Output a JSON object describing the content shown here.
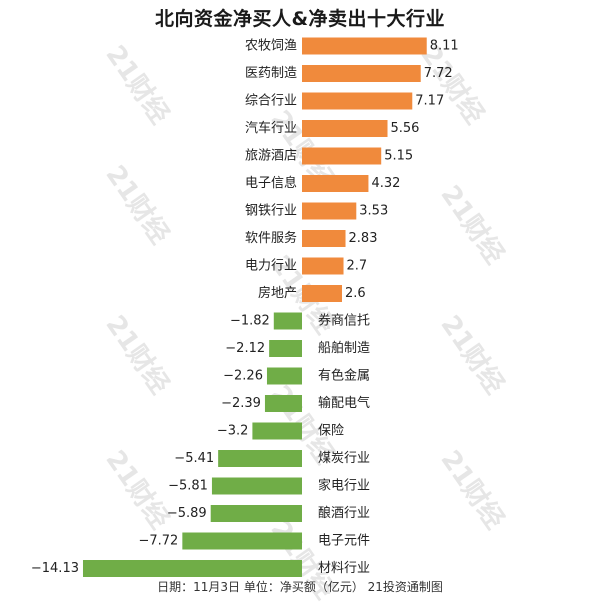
{
  "title": "北向资金净买人&净卖出十大行业",
  "footer": "日期：11月3日 单位：净买额（亿元） 21投资通制图",
  "watermark_text": "21财经",
  "colors": {
    "positive": "#F08A3C",
    "negative": "#70AD47"
  },
  "chart_data": {
    "type": "bar",
    "orientation": "horizontal",
    "title": "北向资金净买人&净卖出十大行业",
    "categories": [
      "农牧饲渔",
      "医药制造",
      "综合行业",
      "汽车行业",
      "旅游酒店",
      "电子信息",
      "钢铁行业",
      "软件服务",
      "电力行业",
      "房地产",
      "券商信托",
      "船舶制造",
      "有色金属",
      "输配电气",
      "保险",
      "煤炭行业",
      "家电行业",
      "酿酒行业",
      "电子元件",
      "材料行业"
    ],
    "values": [
      8.11,
      7.72,
      7.17,
      5.56,
      5.15,
      4.32,
      3.53,
      2.83,
      2.7,
      2.6,
      -1.82,
      -2.12,
      -2.26,
      -2.39,
      -3.2,
      -5.41,
      -5.81,
      -5.89,
      -7.72,
      -14.13
    ],
    "value_labels": [
      "8.11",
      "7.72",
      "7.17",
      "5.56",
      "5.15",
      "4.32",
      "3.53",
      "2.83",
      "2.7",
      "2.6",
      "−1.82",
      "−2.12",
      "−2.26",
      "−2.39",
      "−3.2",
      "−5.41",
      "−5.81",
      "−5.89",
      "−7.72",
      "−14.13"
    ],
    "grid": false,
    "legend": "none"
  }
}
